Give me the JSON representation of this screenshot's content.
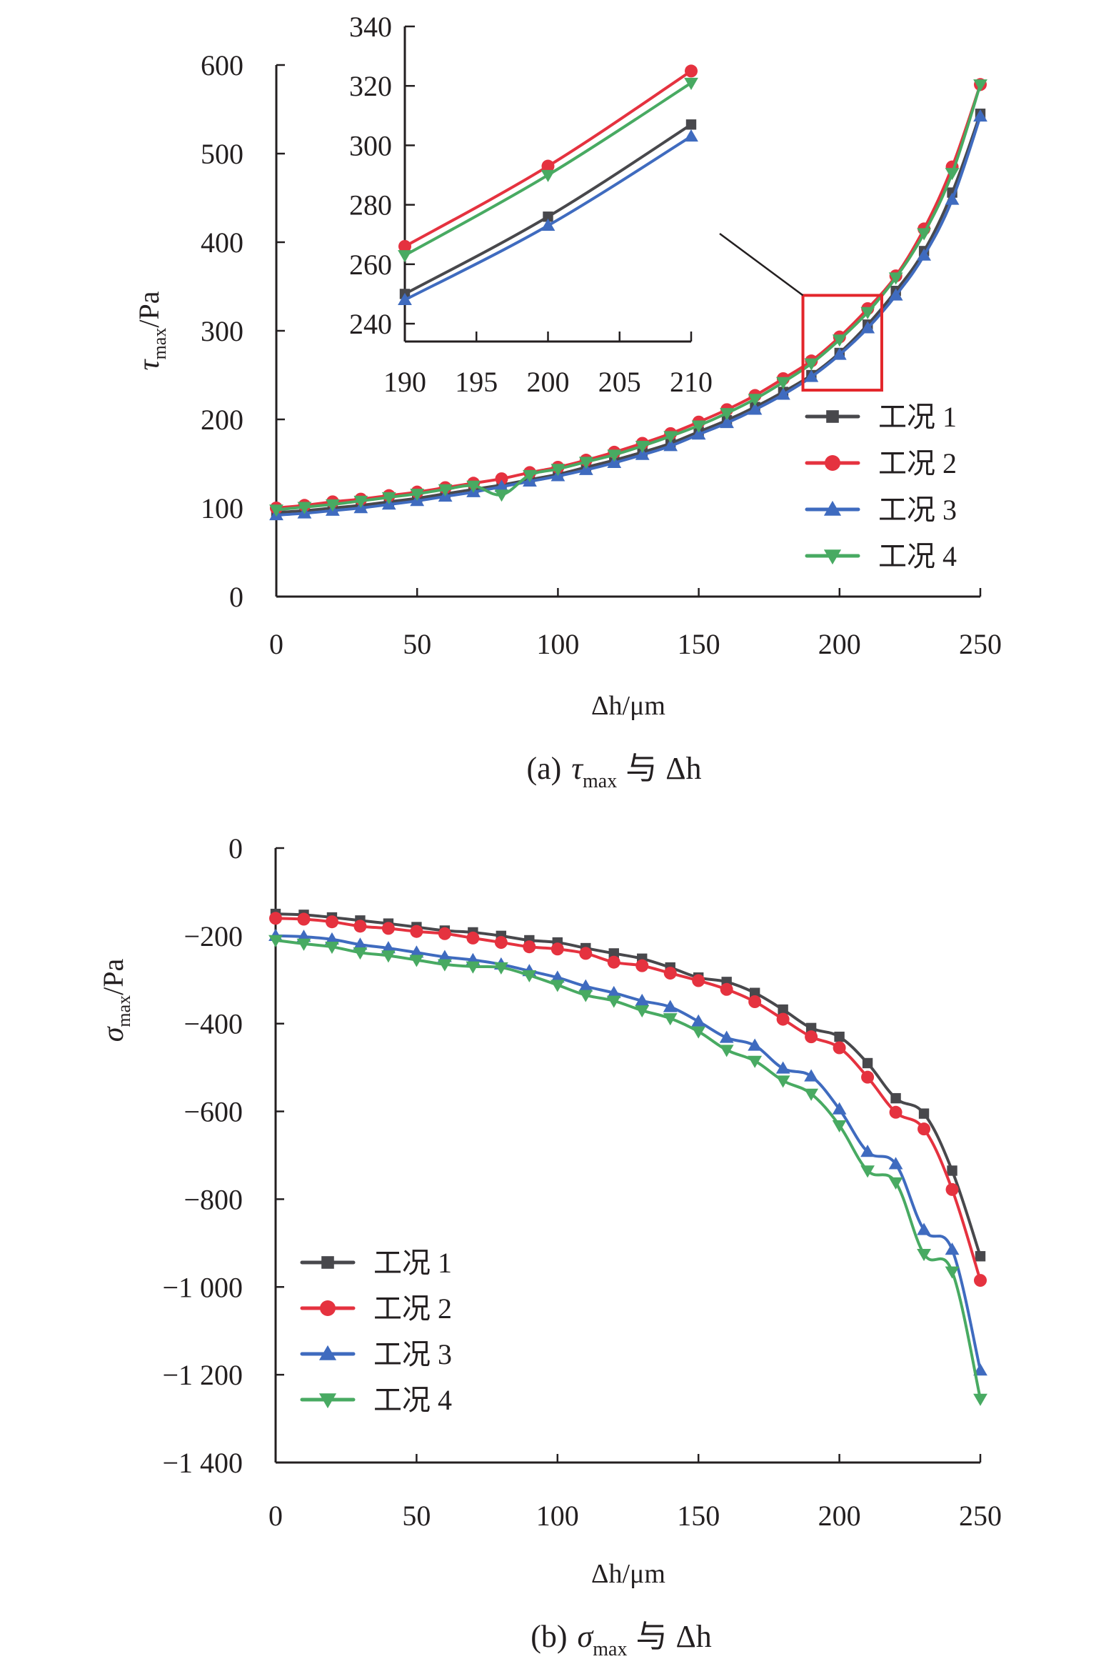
{
  "colors": {
    "series1": "#48484c",
    "series2": "#e5323f",
    "series3": "#3f6bbf",
    "series4": "#48aa62",
    "axis": "#231f20",
    "zoom_box": "#e3262b"
  },
  "legend_labels": [
    "工况 1",
    "工况 2",
    "工况 3",
    "工况 4"
  ],
  "chart_data": [
    {
      "id": "a",
      "type": "line",
      "title": "(a) τmax 与 Δh",
      "caption": {
        "prefix": "(a)",
        "symbol": "τ",
        "subscript": "max",
        "connector": "与",
        "var": "Δh"
      },
      "xlabel": "Δh/μm",
      "ylabel": {
        "symbol": "τ",
        "subscript": "max",
        "unit": "/Pa"
      },
      "xlim": [
        0,
        250
      ],
      "ylim": [
        0,
        600
      ],
      "xticks": [
        0,
        50,
        100,
        150,
        200,
        250
      ],
      "yticks": [
        0,
        100,
        200,
        300,
        400,
        500,
        600
      ],
      "grid": false,
      "legend_position": "bottom-right",
      "x": [
        0,
        10,
        20,
        30,
        40,
        50,
        60,
        70,
        80,
        90,
        100,
        110,
        120,
        130,
        140,
        150,
        160,
        170,
        180,
        190,
        200,
        210,
        220,
        230,
        240,
        250
      ],
      "series": [
        {
          "name": "工况 1",
          "marker": "square",
          "values": [
            95,
            97,
            100,
            103,
            107,
            111,
            116,
            121,
            126,
            132,
            138,
            146,
            154,
            163,
            173,
            186,
            199,
            214,
            231,
            250,
            275,
            307,
            345,
            390,
            456,
            545
          ]
        },
        {
          "name": "工况 2",
          "marker": "circle",
          "values": [
            100,
            103,
            107,
            110,
            114,
            118,
            123,
            128,
            133,
            140,
            146,
            154,
            163,
            173,
            184,
            197,
            211,
            227,
            246,
            266,
            293,
            325,
            362,
            415,
            485,
            578
          ]
        },
        {
          "name": "工况 3",
          "marker": "triangle-up",
          "values": [
            92,
            94,
            97,
            100,
            104,
            108,
            113,
            118,
            124,
            130,
            136,
            143,
            151,
            160,
            170,
            183,
            196,
            211,
            228,
            248,
            273,
            303,
            340,
            385,
            448,
            542
          ]
        },
        {
          "name": "工况 4",
          "marker": "triangle-down",
          "values": [
            98,
            101,
            104,
            108,
            112,
            116,
            121,
            125,
            115,
            137,
            144,
            152,
            160,
            170,
            181,
            193,
            207,
            223,
            242,
            263,
            290,
            321,
            360,
            410,
            478,
            578
          ]
        }
      ],
      "zoom_region": {
        "xlim": [
          187,
          215
        ],
        "ylim": [
          233,
          340
        ]
      },
      "inset": {
        "type": "line",
        "xlim": [
          190,
          210
        ],
        "ylim": [
          234,
          340
        ],
        "xticks": [
          190,
          195,
          200,
          205,
          210
        ],
        "yticks": [
          240,
          260,
          280,
          300,
          320,
          340
        ],
        "x": [
          190,
          200,
          210
        ],
        "series": [
          {
            "name": "工况 1",
            "marker": "square",
            "values": [
              250,
              276,
              307
            ]
          },
          {
            "name": "工况 2",
            "marker": "circle",
            "values": [
              266,
              293,
              325
            ]
          },
          {
            "name": "工况 3",
            "marker": "triangle-up",
            "values": [
              248,
              273,
              303
            ]
          },
          {
            "name": "工况 4",
            "marker": "triangle-down",
            "values": [
              263,
              290,
              321
            ]
          }
        ]
      }
    },
    {
      "id": "b",
      "type": "line",
      "title": "(b) σmax 与 Δh",
      "caption": {
        "prefix": "(b)",
        "symbol": "σ",
        "subscript": "max",
        "connector": "与",
        "var": "Δh"
      },
      "xlabel": "Δh/μm",
      "ylabel": {
        "symbol": "σ",
        "subscript": "max",
        "unit": "/Pa"
      },
      "xlim": [
        0,
        250
      ],
      "ylim": [
        -1400,
        0
      ],
      "xticks": [
        0,
        50,
        100,
        150,
        200,
        250
      ],
      "yticks": [
        0,
        -200,
        -400,
        -600,
        -800,
        -1000,
        -1200,
        -1400
      ],
      "ytick_labels": [
        "0",
        "−200",
        "−400",
        "−600",
        "−800",
        "−1 000",
        "−1 200",
        "−1 400"
      ],
      "grid": false,
      "legend_position": "bottom-left",
      "x": [
        0,
        10,
        20,
        30,
        40,
        50,
        60,
        70,
        80,
        90,
        100,
        110,
        120,
        130,
        140,
        150,
        160,
        170,
        180,
        190,
        200,
        210,
        220,
        230,
        240,
        250
      ],
      "series": [
        {
          "name": "工况 1",
          "marker": "square",
          "values": [
            -150,
            -152,
            -158,
            -165,
            -172,
            -180,
            -188,
            -192,
            -200,
            -210,
            -215,
            -228,
            -240,
            -252,
            -272,
            -295,
            -305,
            -330,
            -368,
            -410,
            -430,
            -490,
            -570,
            -605,
            -735,
            -930
          ]
        },
        {
          "name": "工况 2",
          "marker": "circle",
          "values": [
            -160,
            -162,
            -168,
            -178,
            -183,
            -190,
            -195,
            -205,
            -215,
            -225,
            -230,
            -240,
            -260,
            -268,
            -285,
            -302,
            -322,
            -350,
            -390,
            -430,
            -455,
            -522,
            -602,
            -640,
            -778,
            -985
          ]
        },
        {
          "name": "工况 3",
          "marker": "triangle-up",
          "values": [
            -200,
            -202,
            -208,
            -220,
            -228,
            -238,
            -248,
            -255,
            -265,
            -280,
            -295,
            -315,
            -330,
            -348,
            -362,
            -395,
            -432,
            -450,
            -502,
            -520,
            -595,
            -692,
            -720,
            -870,
            -915,
            -1190
          ]
        },
        {
          "name": "工况 4",
          "marker": "triangle-down",
          "values": [
            -210,
            -218,
            -225,
            -238,
            -245,
            -255,
            -265,
            -270,
            -272,
            -290,
            -312,
            -335,
            -348,
            -370,
            -388,
            -418,
            -460,
            -485,
            -530,
            -560,
            -632,
            -735,
            -762,
            -925,
            -965,
            -1255
          ]
        }
      ]
    }
  ]
}
